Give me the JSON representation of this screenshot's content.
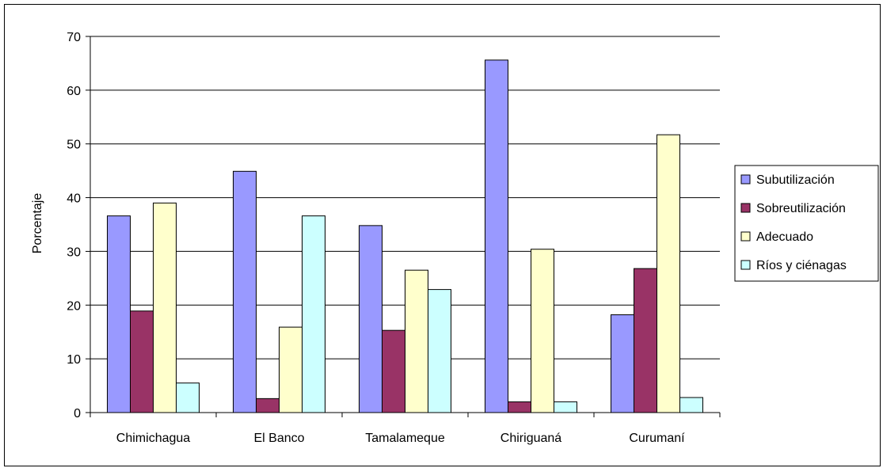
{
  "chart_data": {
    "type": "bar",
    "title": "",
    "xlabel": "",
    "ylabel": "Porcentaje",
    "ylim": [
      0,
      70
    ],
    "yticks": [
      0,
      10,
      20,
      30,
      40,
      50,
      60,
      70
    ],
    "grid": true,
    "legend_position": "right",
    "categories": [
      "Chimichagua",
      "El Banco",
      "Tamalameque",
      "Chiriguaná",
      "Curumaní"
    ],
    "series": [
      {
        "name": "Subutilización",
        "color": "#9999ff",
        "values": [
          36.6,
          44.9,
          34.8,
          65.6,
          18.2
        ]
      },
      {
        "name": "Sobreutilización",
        "color": "#993366",
        "values": [
          18.9,
          2.6,
          15.3,
          2.0,
          26.8
        ]
      },
      {
        "name": "Adecuado",
        "color": "#ffffcc",
        "values": [
          39.0,
          15.9,
          26.5,
          30.4,
          51.7
        ]
      },
      {
        "name": "Ríos y ciénagas",
        "color": "#ccffff",
        "values": [
          5.5,
          36.6,
          22.9,
          2.0,
          2.8
        ]
      }
    ]
  }
}
